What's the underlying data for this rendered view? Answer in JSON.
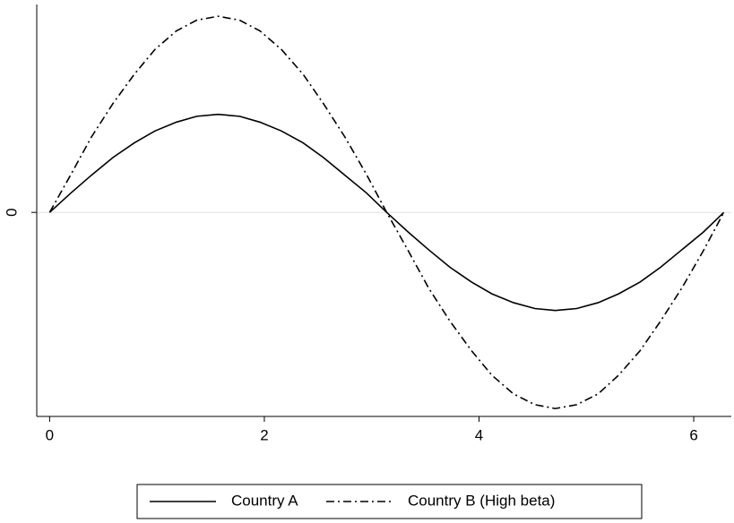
{
  "chart_data": {
    "type": "line",
    "x": [
      0,
      0.2,
      0.39,
      0.59,
      0.79,
      0.98,
      1.18,
      1.37,
      1.57,
      1.77,
      1.96,
      2.16,
      2.36,
      2.55,
      2.75,
      2.95,
      3.14,
      3.34,
      3.53,
      3.73,
      3.93,
      4.12,
      4.32,
      4.52,
      4.71,
      4.91,
      5.11,
      5.3,
      5.5,
      5.69,
      5.89,
      6.09,
      6.28
    ],
    "series": [
      {
        "name": "Country A",
        "color": "#000000",
        "dash": "solid",
        "values": [
          0,
          0.2,
          0.38,
          0.56,
          0.71,
          0.83,
          0.92,
          0.98,
          1,
          0.98,
          0.92,
          0.83,
          0.71,
          0.56,
          0.38,
          0.2,
          0,
          -0.2,
          -0.38,
          -0.56,
          -0.71,
          -0.83,
          -0.92,
          -0.98,
          -1,
          -0.98,
          -0.92,
          -0.83,
          -0.71,
          -0.56,
          -0.38,
          -0.2,
          0
        ]
      },
      {
        "name": "Country B (High beta)",
        "color": "#000000",
        "dash": "dashdot",
        "values": [
          0,
          0.39,
          0.77,
          1.11,
          1.41,
          1.66,
          1.85,
          1.96,
          2,
          1.96,
          1.85,
          1.66,
          1.41,
          1.11,
          0.77,
          0.39,
          0,
          -0.39,
          -0.77,
          -1.11,
          -1.41,
          -1.66,
          -1.85,
          -1.96,
          -2,
          -1.96,
          -1.85,
          -1.66,
          -1.41,
          -1.11,
          -0.77,
          -0.39,
          0
        ]
      }
    ],
    "xlim": [
      -0.12,
      6.35
    ],
    "xticks": [
      0,
      2,
      4,
      6
    ],
    "ylim": [
      -2.08,
      2.12
    ],
    "yticks": [
      0
    ],
    "grid": true,
    "legend": "bottom"
  }
}
